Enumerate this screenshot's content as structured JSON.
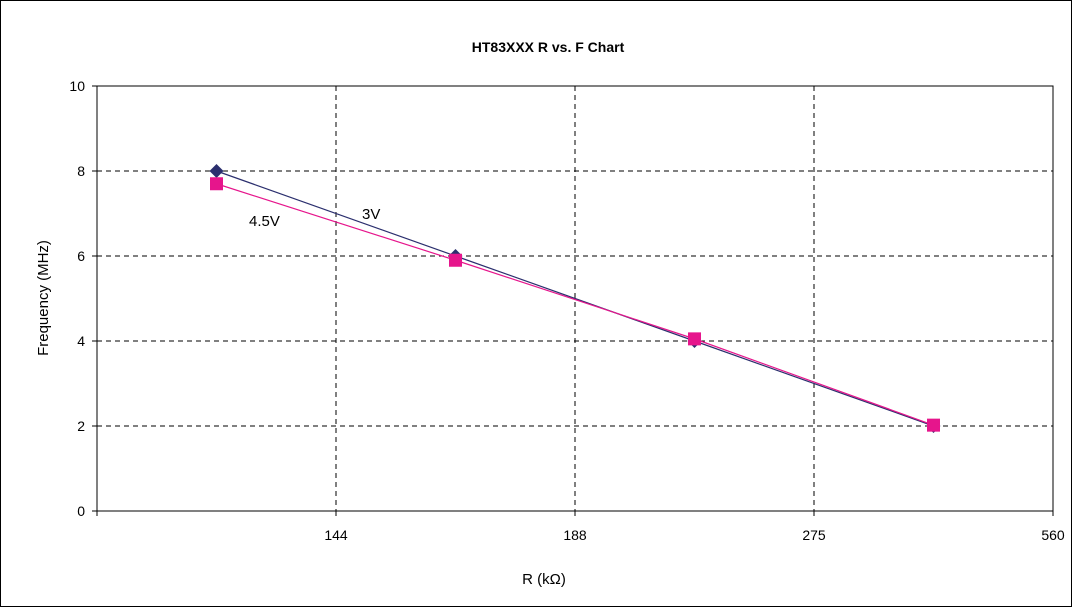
{
  "chart_data": {
    "type": "line",
    "title": "HT83XXX  R vs. F Chart",
    "xlabel": "R (kΩ)",
    "ylabel": "Frequency (MHz)",
    "x_tick_labels": [
      "144",
      "188",
      "275",
      "560"
    ],
    "ylim": [
      0,
      10
    ],
    "y_ticks": [
      0,
      2,
      4,
      6,
      8,
      10
    ],
    "grid": true,
    "categories_position": [
      0.5,
      1.5,
      2.5,
      3.5
    ],
    "series": [
      {
        "name": "3V",
        "x": [
          0.5,
          1.5,
          2.5,
          3.5
        ],
        "values": [
          8.0,
          6.0,
          4.0,
          2.0
        ],
        "color": "#2b2f6e",
        "marker": "diamond"
      },
      {
        "name": "4.5V",
        "x": [
          0.5,
          1.5,
          2.5,
          3.5
        ],
        "values": [
          7.7,
          5.9,
          4.05,
          2.02
        ],
        "color": "#e6158c",
        "marker": "square"
      }
    ],
    "annotations": [
      "3V",
      "4.5V"
    ]
  }
}
